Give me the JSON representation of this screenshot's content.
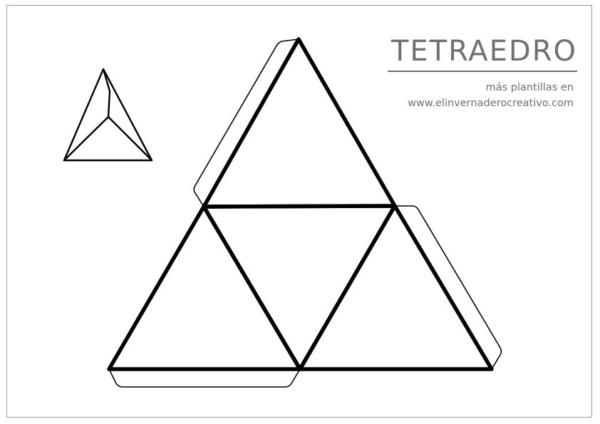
{
  "header": {
    "title": "TETRAEDRO",
    "subtitle_line_1": "más plantillas en",
    "subtitle_line_2": "www.elinvernaderocreativo.com"
  },
  "colors": {
    "outline": "#000000",
    "text": "#707070",
    "frame": "#9a9a9a",
    "background": "#ffffff"
  }
}
